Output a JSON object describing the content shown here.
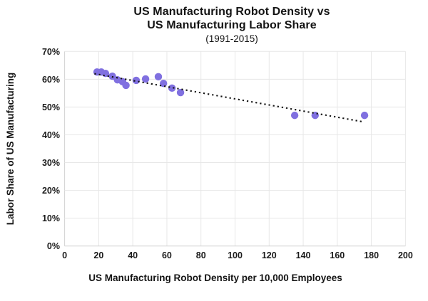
{
  "figure": {
    "background_color": "#ffffff"
  },
  "chart_data": {
    "type": "scatter",
    "title_line1": "US Manufacturing Robot Density vs",
    "title_line2": "US Manufacturing Labor Share",
    "subtitle": "(1991-2015)",
    "xlabel": "US Manufacturing Robot Density per 10,000 Employees",
    "ylabel": "Labor Share of US Manufacturing",
    "xlim": [
      0,
      200
    ],
    "ylim": [
      0,
      70
    ],
    "x_tick_values": [
      0,
      20,
      40,
      60,
      80,
      100,
      120,
      140,
      160,
      180,
      200
    ],
    "x_tick_labels": [
      "0",
      "20",
      "40",
      "60",
      "80",
      "100",
      "120",
      "140",
      "160",
      "180",
      "200"
    ],
    "y_tick_values": [
      0,
      10,
      20,
      30,
      40,
      50,
      60,
      70
    ],
    "y_tick_labels": [
      "0%",
      "10%",
      "20%",
      "30%",
      "40%",
      "50%",
      "60%",
      "70%"
    ],
    "grid": true,
    "legend_position": "none",
    "points": [
      [
        19,
        62.6
      ],
      [
        21.5,
        62.6
      ],
      [
        24,
        62.1
      ],
      [
        28,
        61.1
      ],
      [
        31,
        59.8
      ],
      [
        34,
        59.1
      ],
      [
        36,
        57.8
      ],
      [
        42,
        59.6
      ],
      [
        47.5,
        60.1
      ],
      [
        55,
        60.9
      ],
      [
        58,
        58.5
      ],
      [
        63,
        56.8
      ],
      [
        68,
        55.2
      ],
      [
        135,
        47.0
      ],
      [
        147,
        47.0
      ],
      [
        176,
        47.0
      ]
    ],
    "trendline": {
      "style": "dotted",
      "x1": 17.5,
      "y1": 62.0,
      "x2": 175,
      "y2": 44.7
    },
    "colors": {
      "point": "#8070E0",
      "trendline": "#141414",
      "gridline": "#e7e7e7",
      "axis": "#d2d2d2",
      "text": "#141414"
    }
  }
}
